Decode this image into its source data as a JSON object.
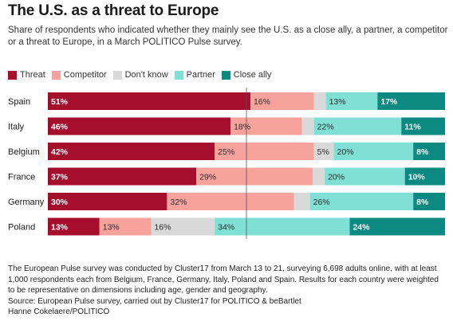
{
  "header": {
    "title": "The U.S. as a threat to Europe",
    "subtitle": "Share of respondents who indicated whether they mainly see the U.S. as a close ally, a partner, a competitor or a threat to Europe, in a March POLITICO Pulse survey."
  },
  "footer": {
    "note": "The European Pulse survey was conducted by Cluster17 from March 13 to 21, surveying 6,698 adults online, with at least 1,000 respondents each from Belgium, France, Germany, Italy, Poland and Spain. Results for each country were weighted to be representative on dimensions including age, gender and geography.",
    "source": "Source: European Pulse survey, carried out by Cluster17 for POLITICO & beBartlet",
    "credit": "Hanne Cokelaere/POLITICO"
  },
  "chart_data": {
    "type": "bar",
    "orientation": "horizontal",
    "stacked": true,
    "unit": "%",
    "xlim": [
      0,
      100
    ],
    "legend_position": "top-left",
    "grid": false,
    "reference_line_x": 50,
    "categories": [
      "Spain",
      "Italy",
      "Belgium",
      "France",
      "Germany",
      "Poland"
    ],
    "series": [
      {
        "name": "Threat",
        "color": "#a50f2d",
        "values": [
          51,
          46,
          42,
          37,
          30,
          13
        ]
      },
      {
        "name": "Competitor",
        "color": "#f7a39c",
        "values": [
          16,
          18,
          25,
          29,
          32,
          13
        ]
      },
      {
        "name": "Don't know",
        "color": "#d9d9d9",
        "values": [
          3,
          3,
          5,
          3,
          4,
          16
        ]
      },
      {
        "name": "Partner",
        "color": "#80e0d6",
        "values": [
          13,
          22,
          20,
          20,
          26,
          34
        ]
      },
      {
        "name": "Close ally",
        "color": "#0c8a82",
        "values": [
          17,
          11,
          8,
          10,
          8,
          24
        ]
      }
    ],
    "labels": [
      [
        "51%",
        "16%",
        "",
        "13%",
        "17%"
      ],
      [
        "46%",
        "18%",
        "",
        "22%",
        "11%"
      ],
      [
        "42%",
        "25%",
        "5%",
        "20%",
        "8%"
      ],
      [
        "37%",
        "29%",
        "",
        "20%",
        "10%"
      ],
      [
        "30%",
        "32%",
        "",
        "26%",
        "8%"
      ],
      [
        "13%",
        "13%",
        "16%",
        "34%",
        "24%"
      ]
    ]
  }
}
